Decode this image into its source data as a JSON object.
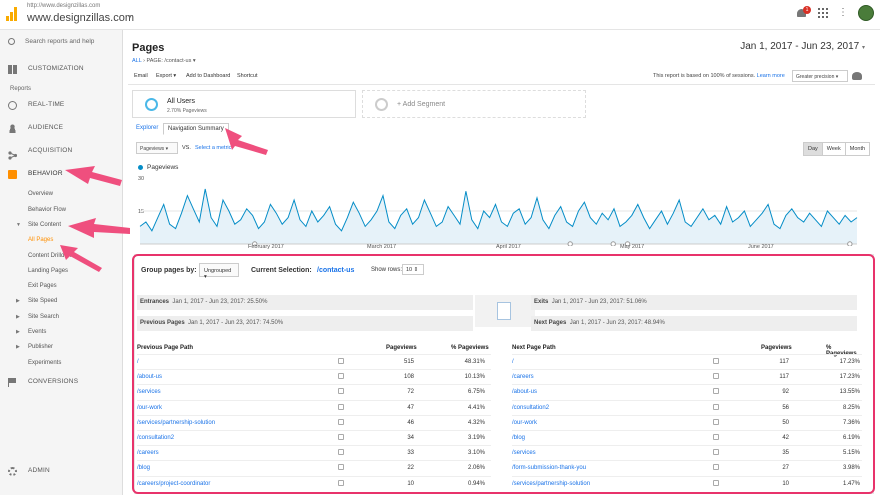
{
  "account": {
    "url": "http://www.designzillas.com",
    "name": "www.designzillas.com"
  },
  "topbar": {
    "notifications_count": "1"
  },
  "sidebar": {
    "search_placeholder": "Search reports and help",
    "customization": "CUSTOMIZATION",
    "reports_header": "Reports",
    "realtime": "REAL-TIME",
    "audience": "AUDIENCE",
    "acquisition": "ACQUISITION",
    "behavior": "BEHAVIOR",
    "behavior_items": {
      "overview": "Overview",
      "behavior_flow": "Behavior Flow",
      "site_content": "Site Content",
      "all_pages": "All Pages",
      "content_drilldown": "Content Drilldown",
      "landing_pages": "Landing Pages",
      "exit_pages": "Exit Pages",
      "site_speed": "Site Speed",
      "site_search": "Site Search",
      "events": "Events",
      "publisher": "Publisher",
      "experiments": "Experiments"
    },
    "conversions": "CONVERSIONS",
    "admin": "ADMIN"
  },
  "page": {
    "title": "Pages",
    "crumb_all": "ALL",
    "crumb_page": "PAGE: /contact-us",
    "date_range": "Jan 1, 2017 - Jun 23, 2017"
  },
  "actions": {
    "email": "Email",
    "export": "Export",
    "add_dashboard": "Add to Dashboard",
    "shortcut": "Shortcut",
    "report_note": "This report is based on 100% of sessions.",
    "learn_more": "Learn more",
    "precision": "Greater precision"
  },
  "segments": {
    "all_users": "All Users",
    "all_users_pct": "2.70% Pageviews",
    "add_segment": "+ Add Segment"
  },
  "tabs": {
    "explorer": "Explorer",
    "nav_summary": "Navigation Summary"
  },
  "controls": {
    "metric": "Pageviews",
    "vs": "VS.",
    "select_metric": "Select a metric",
    "day": "Day",
    "week": "Week",
    "month": "Month"
  },
  "chart_data": {
    "type": "line",
    "title": "",
    "series_name": "Pageviews",
    "yticks": [
      "30",
      "15"
    ],
    "xticks": [
      "February 2017",
      "March 2017",
      "April 2017",
      "May 2017",
      "June 2017"
    ],
    "ylim": [
      0,
      30
    ],
    "values": [
      8,
      10,
      6,
      12,
      18,
      9,
      7,
      14,
      22,
      16,
      10,
      25,
      12,
      8,
      20,
      15,
      9,
      11,
      16,
      13,
      7,
      10,
      18,
      14,
      9,
      12,
      20,
      11,
      8,
      15,
      10,
      13,
      17,
      9,
      6,
      12,
      19,
      14,
      8,
      11,
      15,
      22,
      10,
      7,
      13,
      16,
      9,
      12,
      20,
      14,
      8,
      10,
      17,
      13,
      9,
      24,
      11,
      7,
      15,
      12,
      18,
      10,
      8,
      14,
      16,
      9,
      12,
      21,
      11,
      7,
      13,
      17,
      10,
      8,
      15,
      19,
      12,
      9,
      14,
      11,
      16,
      8,
      10,
      13,
      18,
      12,
      7,
      11,
      15,
      9,
      14,
      20,
      10,
      8,
      12,
      16,
      11,
      13,
      9,
      17,
      10,
      12,
      15,
      8,
      11,
      14,
      18,
      9,
      7,
      13,
      16,
      12,
      10,
      14,
      11,
      8,
      15,
      12,
      9,
      13,
      10,
      12
    ]
  },
  "nav": {
    "group_label": "Group pages by:",
    "group_value": "Ungrouped",
    "current_label": "Current Selection:",
    "current_value": "/contact-us",
    "show_rows": "Show rows:",
    "rows_value": "10",
    "entrances": "Entrances",
    "entrances_val": "Jan 1, 2017 - Jun 23, 2017: 25.50%",
    "previous": "Previous Pages",
    "previous_val": "Jan 1, 2017 - Jun 23, 2017: 74.50%",
    "exits": "Exits",
    "exits_val": "Jan 1, 2017 - Jun 23, 2017: 51.06%",
    "next": "Next Pages",
    "next_val": "Jan 1, 2017 - Jun 23, 2017: 48.94%",
    "prev_head": {
      "path": "Previous Page Path",
      "pv": "Pageviews",
      "pct": "% Pageviews"
    },
    "next_head": {
      "path": "Next Page Path",
      "pv": "Pageviews",
      "pct": "% Pageviews"
    },
    "prev_rows": [
      {
        "path": "/",
        "pv": "515",
        "pct": "48.31%"
      },
      {
        "path": "/about-us",
        "pv": "108",
        "pct": "10.13%"
      },
      {
        "path": "/services",
        "pv": "72",
        "pct": "6.75%"
      },
      {
        "path": "/our-work",
        "pv": "47",
        "pct": "4.41%"
      },
      {
        "path": "/services/partnership-solution",
        "pv": "46",
        "pct": "4.32%"
      },
      {
        "path": "/consultation2",
        "pv": "34",
        "pct": "3.19%"
      },
      {
        "path": "/careers",
        "pv": "33",
        "pct": "3.10%"
      },
      {
        "path": "/blog",
        "pv": "22",
        "pct": "2.06%"
      },
      {
        "path": "/careers/project-coordinator",
        "pv": "10",
        "pct": "0.94%"
      }
    ],
    "next_rows": [
      {
        "path": "/",
        "pv": "117",
        "pct": "17.23%"
      },
      {
        "path": "/careers",
        "pv": "117",
        "pct": "17.23%"
      },
      {
        "path": "/about-us",
        "pv": "92",
        "pct": "13.55%"
      },
      {
        "path": "/consultation2",
        "pv": "56",
        "pct": "8.25%"
      },
      {
        "path": "/our-work",
        "pv": "50",
        "pct": "7.36%"
      },
      {
        "path": "/blog",
        "pv": "42",
        "pct": "6.19%"
      },
      {
        "path": "/services",
        "pv": "35",
        "pct": "5.15%"
      },
      {
        "path": "/form-submission-thank-you",
        "pv": "27",
        "pct": "3.98%"
      },
      {
        "path": "/services/partnership-solution",
        "pv": "10",
        "pct": "1.47%"
      }
    ]
  },
  "colors": {
    "accent": "#ff8f00",
    "link": "#1a73e8",
    "line": "#058dc7",
    "highlight": "#e8336b"
  }
}
